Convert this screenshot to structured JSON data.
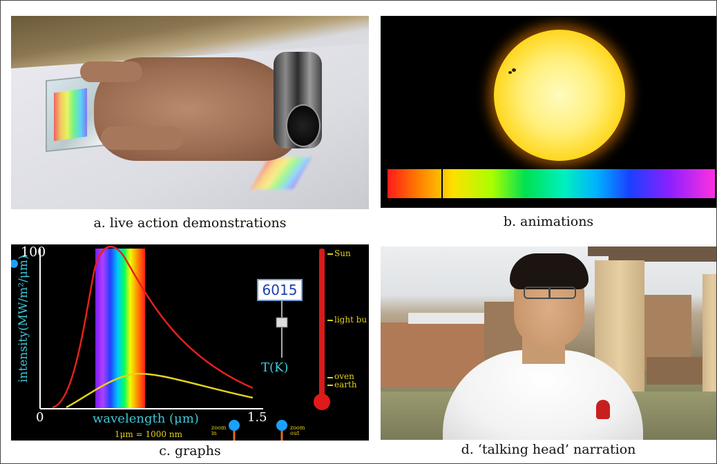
{
  "panels": {
    "a": {
      "caption": "a. live action demonstrations"
    },
    "b": {
      "caption": "b. animations"
    },
    "c": {
      "caption": "c. graphs",
      "y_axis_top": "100",
      "y_axis_label": "intensity(MW/m²/μm)",
      "x_axis_start": "0",
      "x_axis_end": "1.5",
      "x_axis_label": "wavelength (μm)",
      "unit_note": "1μm = 1000 nm",
      "temperature_value": "6015",
      "temperature_label": "T(K)",
      "thermometer_marks": [
        "Sun",
        "light bu",
        "oven",
        "earth"
      ],
      "zoom_in_label": "zoom in",
      "zoom_out_label": "zoom out"
    },
    "d": {
      "caption": "d. ‘talking head’ narration"
    }
  }
}
